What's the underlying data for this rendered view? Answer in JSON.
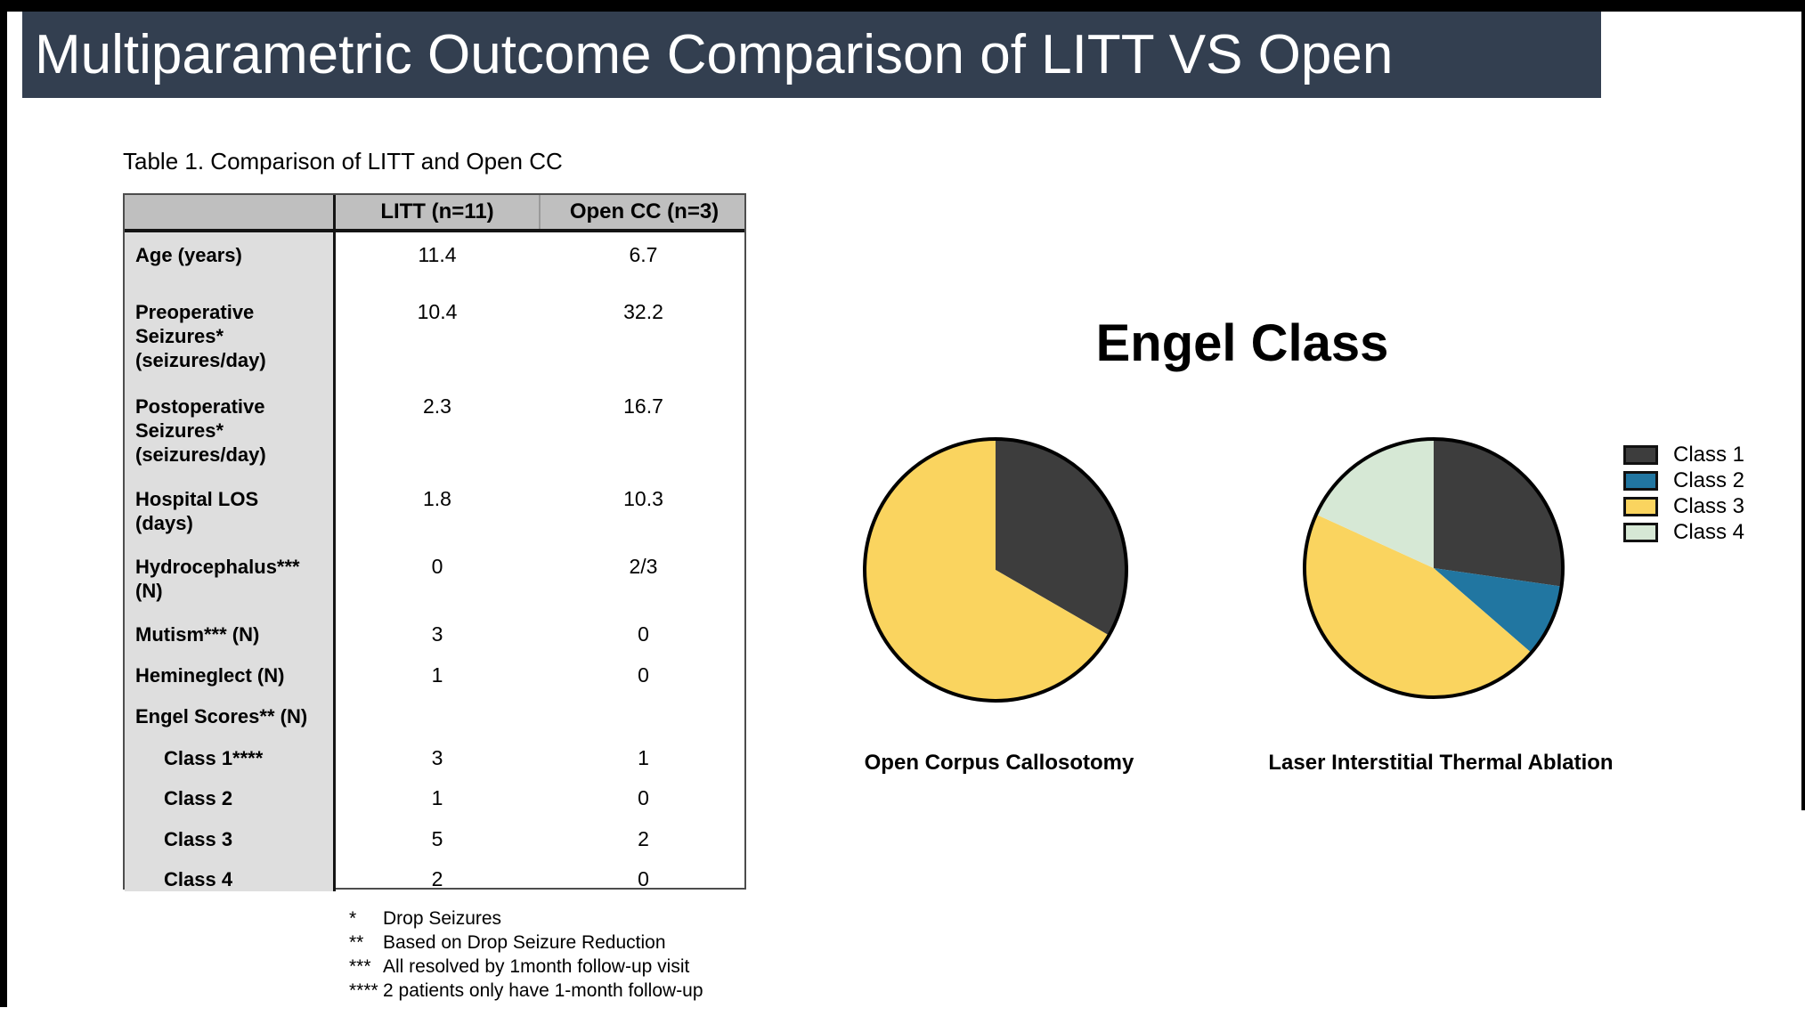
{
  "header": {
    "title": "Multiparametric Outcome Comparison of LITT VS Open"
  },
  "table": {
    "caption": "Table 1. Comparison of LITT and Open CC",
    "columns": [
      "",
      "LITT (n=11)",
      "Open CC (n=3)"
    ],
    "rows": [
      {
        "label": "Age (years)",
        "litt": "11.4",
        "open_cc": "6.7"
      },
      {
        "label": "Preoperative Seizures* (seizures/day)",
        "litt": "10.4",
        "open_cc": "32.2"
      },
      {
        "label": "Postoperative Seizures* (seizures/day)",
        "litt": "2.3",
        "open_cc": "16.7"
      },
      {
        "label": "Hospital LOS (days)",
        "litt": "1.8",
        "open_cc": "10.3"
      },
      {
        "label": "Hydrocephalus*** (N)",
        "litt": "0",
        "open_cc": "2/3"
      },
      {
        "label": "Mutism*** (N)",
        "litt": "3",
        "open_cc": "0"
      },
      {
        "label": "Hemineglect (N)",
        "litt": "1",
        "open_cc": "0"
      },
      {
        "label": "Engel Scores** (N)",
        "litt": "",
        "open_cc": ""
      },
      {
        "label": "Class 1****",
        "litt": "3",
        "open_cc": "1"
      },
      {
        "label": "Class 2",
        "litt": "1",
        "open_cc": "0"
      },
      {
        "label": "Class 3",
        "litt": "5",
        "open_cc": "2"
      },
      {
        "label": "Class 4",
        "litt": "2",
        "open_cc": "0"
      }
    ]
  },
  "footnotes": [
    {
      "marker": "*",
      "text": "Drop Seizures"
    },
    {
      "marker": "**",
      "text": "Based on Drop Seizure Reduction"
    },
    {
      "marker": "***",
      "text": "All resolved by 1month follow-up visit"
    },
    {
      "marker": "****",
      "text": "2 patients only have 1-month follow-up"
    }
  ],
  "chart_data": {
    "type": "pie",
    "title": "Engel Class",
    "categories": [
      "Class 1",
      "Class 2",
      "Class 3",
      "Class 4"
    ],
    "colors": [
      "#3D3D3D",
      "#2176A1",
      "#FAD45F",
      "#D6E8D5"
    ],
    "legend_position": "right",
    "pies": [
      {
        "label": "Open Corpus Callosotomy",
        "values": [
          1,
          0,
          2,
          0
        ]
      },
      {
        "label": "Laser Interstitial Thermal Ablation",
        "values": [
          3,
          1,
          5,
          2
        ]
      }
    ]
  }
}
